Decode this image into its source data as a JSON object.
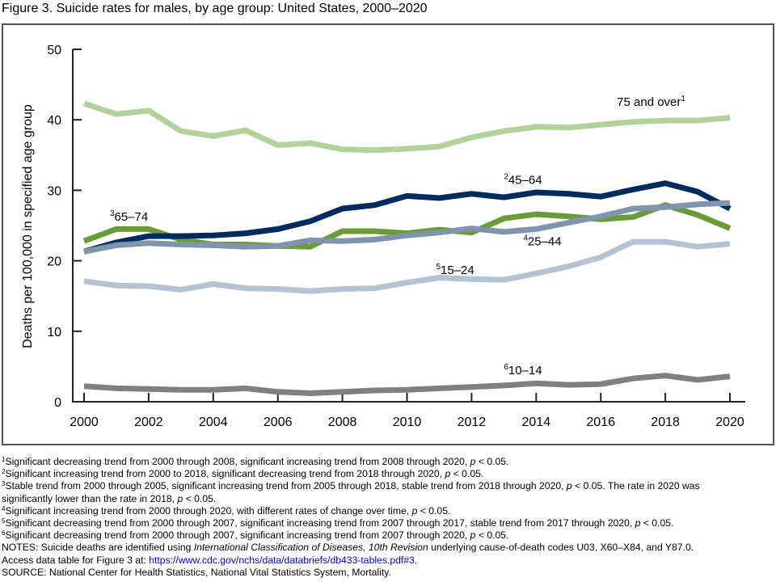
{
  "figure": {
    "title": "Figure 3. Suicide rates for males, by age group: United States, 2000–2020"
  },
  "colors": {
    "75_and_over": "#b3d19a",
    "45_64": "#002b5e",
    "65_74": "#6a9c35",
    "25_44": "#8194ad",
    "15_24": "#b4c3d4",
    "10_14": "#808080",
    "axis": "#222222",
    "frame": "#555555",
    "link": "#0000ee"
  },
  "chart_data": {
    "type": "line",
    "title": "Figure 3. Suicide rates for males, by age group: United States, 2000–2020",
    "xlabel": "",
    "ylabel": "Deaths per 100,000 in specified age group",
    "xlim": [
      2000,
      2020
    ],
    "ylim": [
      0,
      50
    ],
    "grid": false,
    "legend": "inline-labels",
    "x": [
      2000,
      2001,
      2002,
      2003,
      2004,
      2005,
      2006,
      2007,
      2008,
      2009,
      2010,
      2011,
      2012,
      2013,
      2014,
      2015,
      2016,
      2017,
      2018,
      2019,
      2020
    ],
    "x_ticks": [
      "2000",
      "2002",
      "2004",
      "2006",
      "2008",
      "2010",
      "2012",
      "2014",
      "2016",
      "2018",
      "2020"
    ],
    "x_tick_values": [
      2000,
      2002,
      2004,
      2006,
      2008,
      2010,
      2012,
      2014,
      2016,
      2018,
      2020
    ],
    "y_ticks": [
      "0",
      "10",
      "20",
      "30",
      "40",
      "50"
    ],
    "y_tick_values": [
      0,
      10,
      20,
      30,
      40,
      50
    ],
    "series": [
      {
        "id": "75_and_over",
        "name": "75 and over",
        "footnote": "1",
        "label_year": 2016.5,
        "label_value": 42.0,
        "values": [
          42.3,
          40.8,
          41.3,
          38.4,
          37.7,
          38.5,
          36.4,
          36.7,
          35.8,
          35.7,
          35.9,
          36.2,
          37.5,
          38.4,
          39.0,
          38.9,
          39.3,
          39.7,
          39.9,
          39.9,
          40.3
        ]
      },
      {
        "id": "45_64",
        "name": "45–64",
        "footnote": "2",
        "label_year": 2013.0,
        "label_value": 30.9,
        "values": [
          21.3,
          22.6,
          23.5,
          23.5,
          23.6,
          23.9,
          24.5,
          25.6,
          27.4,
          27.9,
          29.2,
          28.9,
          29.5,
          29.0,
          29.7,
          29.5,
          29.1,
          30.1,
          31.0,
          29.8,
          27.4
        ]
      },
      {
        "id": "65_74",
        "name": "65–74",
        "footnote": "3",
        "label_year": 2000.8,
        "label_value": 25.7,
        "values": [
          22.8,
          24.5,
          24.5,
          23.0,
          22.3,
          22.3,
          22.1,
          22.0,
          24.2,
          24.2,
          23.9,
          24.4,
          24.0,
          26.0,
          26.6,
          26.3,
          25.9,
          26.2,
          27.9,
          26.5,
          24.6
        ]
      },
      {
        "id": "25_44",
        "name": "25–44",
        "footnote": "4",
        "label_year": 2013.6,
        "label_value": 22.2,
        "values": [
          21.3,
          22.2,
          22.5,
          22.3,
          22.2,
          22.0,
          22.1,
          22.9,
          22.8,
          23.0,
          23.6,
          24.0,
          24.6,
          24.1,
          24.5,
          25.4,
          26.3,
          27.4,
          27.6,
          28.0,
          28.2
        ]
      },
      {
        "id": "15_24",
        "name": "15–24",
        "footnote": "5",
        "label_year": 2010.9,
        "label_value": 18.1,
        "values": [
          17.1,
          16.5,
          16.4,
          15.9,
          16.7,
          16.1,
          16.0,
          15.7,
          16.0,
          16.1,
          16.9,
          17.6,
          17.4,
          17.3,
          18.2,
          19.2,
          20.5,
          22.7,
          22.7,
          22.0,
          22.4
        ]
      },
      {
        "id": "10_14",
        "name": "10–14",
        "footnote": "6",
        "label_year": 2013.0,
        "label_value": 3.9,
        "values": [
          2.2,
          1.9,
          1.8,
          1.7,
          1.7,
          1.9,
          1.4,
          1.2,
          1.4,
          1.6,
          1.7,
          1.9,
          2.1,
          2.3,
          2.6,
          2.4,
          2.5,
          3.3,
          3.7,
          3.1,
          3.6
        ]
      }
    ]
  },
  "notes": {
    "footnotes": [
      {
        "mark": "1",
        "parts": [
          {
            "t": "Significant decreasing trend from 2000 through 2008, significant increasing trend from 2008 through 2020, "
          },
          {
            "t": "p",
            "i": true
          },
          {
            "t": " < 0.05."
          }
        ]
      },
      {
        "mark": "2",
        "parts": [
          {
            "t": "Significant increasing trend from 2000 to 2018, significant decreasing trend from 2018 through 2020, "
          },
          {
            "t": "p",
            "i": true
          },
          {
            "t": " < 0.05."
          }
        ]
      },
      {
        "mark": "3",
        "parts": [
          {
            "t": "Stable trend from 2000 through 2005, significant increasing trend from 2005 through 2018, stable trend from 2018 through 2020, "
          },
          {
            "t": "p",
            "i": true
          },
          {
            "t": " < 0.05. The rate in 2020 was"
          }
        ],
        "continuation": [
          {
            "t": "significantly lower than the rate in 2018, "
          },
          {
            "t": "p",
            "i": true
          },
          {
            "t": " < 0.05."
          }
        ]
      },
      {
        "mark": "4",
        "parts": [
          {
            "t": "Significant increasing trend from 2000 through 2020, with different rates of change over time, "
          },
          {
            "t": "p",
            "i": true
          },
          {
            "t": " < 0.05."
          }
        ]
      },
      {
        "mark": "5",
        "parts": [
          {
            "t": "Significant decreasing trend from 2000 through 2007, significant increasing trend from 2007 through 2017, stable trend from 2017 through 2020, "
          },
          {
            "t": "p",
            "i": true
          },
          {
            "t": " < 0.05."
          }
        ]
      },
      {
        "mark": "6",
        "parts": [
          {
            "t": "Significant decreasing trend from 2000 through 2007, significant increasing trend from 2007 through 2020, "
          },
          {
            "t": "p",
            "i": true
          },
          {
            "t": " < 0.05."
          }
        ]
      }
    ],
    "notes_line": [
      {
        "t": "NOTES: Suicide deaths are identified using "
      },
      {
        "t": "International Classification of Diseases, 10th Revision",
        "i": true
      },
      {
        "t": " underlying cause-of-death codes U03, X60–X84, and Y87.0."
      }
    ],
    "access_prefix": "Access data table for Figure 3 at: ",
    "access_link": "https://www.cdc.gov/nchs/data/databriefs/db433-tables.pdf#3",
    "access_suffix": ".",
    "source": "SOURCE: National Center for Health Statistics, National Vital Statistics System, Mortality."
  }
}
